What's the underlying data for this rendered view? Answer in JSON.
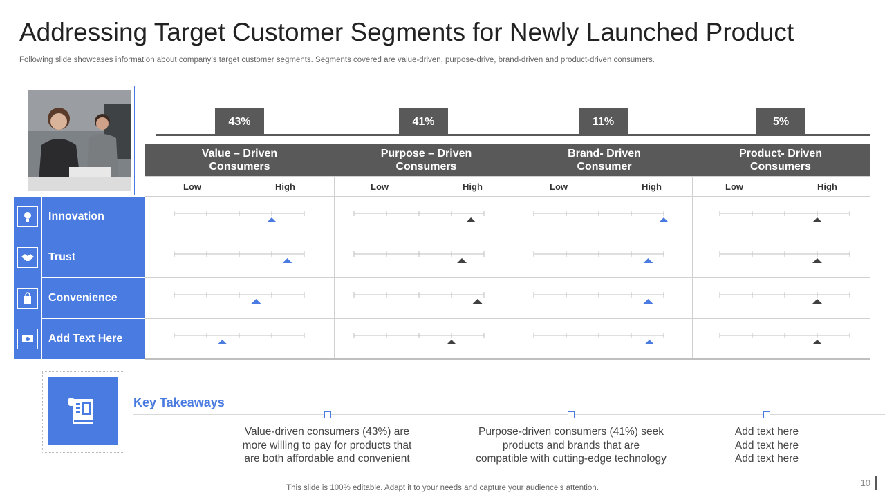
{
  "header": {
    "title": "Addressing Target Customer Segments for Newly Launched Product",
    "subtitle": "Following slide showcases information about company’s target customer segments. Segments covered are value-driven, purpose-drive, brand-driven and product-driven consumers."
  },
  "colors": {
    "accent": "#4a7be0",
    "dark_gray": "#595959",
    "marker_dark": "#404040"
  },
  "segments": [
    {
      "percent": "43%",
      "label": "Value – Driven Consumers",
      "low": "Low",
      "high": "High"
    },
    {
      "percent": "41%",
      "label": "Purpose – Driven Consumers",
      "low": "Low",
      "high": "High"
    },
    {
      "percent": "11%",
      "label": "Brand- Driven Consumer",
      "low": "Low",
      "high": "High"
    },
    {
      "percent": "5%",
      "label": "Product- Driven Consumers",
      "low": "Low",
      "high": "High"
    }
  ],
  "attributes": [
    {
      "label": "Innovation",
      "icon": "lightbulb-icon",
      "ratings": [
        0.75,
        0.9,
        1.0,
        0.75
      ],
      "marker_colors": [
        "accent",
        "dark",
        "accent",
        "dark"
      ]
    },
    {
      "label": "Trust",
      "icon": "handshake-icon",
      "ratings": [
        0.87,
        0.83,
        0.88,
        0.75
      ],
      "marker_colors": [
        "accent",
        "dark",
        "accent",
        "dark"
      ]
    },
    {
      "label": "Convenience",
      "icon": "shopping-bag-icon",
      "ratings": [
        0.63,
        0.95,
        0.88,
        0.75
      ],
      "marker_colors": [
        "accent",
        "dark",
        "accent",
        "dark"
      ]
    },
    {
      "label": "Add Text Here",
      "icon": "money-icon",
      "ratings": [
        0.37,
        0.75,
        0.89,
        0.75
      ],
      "marker_colors": [
        "accent",
        "dark",
        "accent",
        "dark"
      ]
    }
  ],
  "takeaways": {
    "title": "Key Takeaways",
    "items": [
      "Value-driven consumers (43%) are\nmore willing to pay for products that\nare both affordable and convenient",
      "Purpose-driven consumers (41%) seek\nproducts and brands that are\ncompatible with cutting-edge technology",
      "Add text here\nAdd text here\nAdd text here"
    ]
  },
  "footer": {
    "note": "This slide is 100% editable. Adapt it to your needs and capture your audience’s attention.",
    "page_number": "10"
  }
}
